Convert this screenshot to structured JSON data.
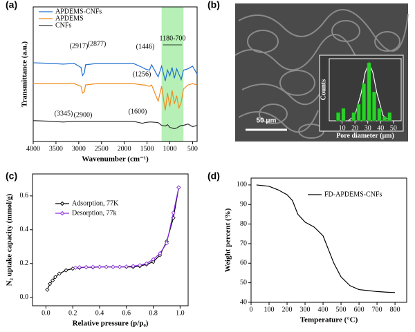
{
  "chart_data": [
    {
      "type": "line",
      "label": "(a)",
      "xlabel": "Wavenumber (cm⁻¹)",
      "ylabel": "Transmittance (a.u.)",
      "xlim": [
        4000,
        400
      ],
      "ylim": [
        0,
        10
      ],
      "xticks": [
        4000,
        3500,
        3000,
        2500,
        2000,
        1500,
        1000,
        500
      ],
      "x": [
        4000,
        3600,
        3345,
        3100,
        2950,
        2917,
        2877,
        2850,
        2600,
        2200,
        1800,
        1600,
        1550,
        1446,
        1400,
        1256,
        1180,
        1100,
        1050,
        1000,
        950,
        900,
        850,
        800,
        750,
        700,
        600,
        500,
        400
      ],
      "series": [
        {
          "name": "APDEMS-CNFs",
          "color": "#1f6fd1",
          "values": [
            5.85,
            5.8,
            5.75,
            5.8,
            5.5,
            4.9,
            5.1,
            5.7,
            5.8,
            5.8,
            5.8,
            5.5,
            5.4,
            5.3,
            5.7,
            4.8,
            5.6,
            4.5,
            5.3,
            4.9,
            5.5,
            4.7,
            5.4,
            5.0,
            4.6,
            5.3,
            5.4,
            5.6,
            5.0
          ]
        },
        {
          "name": "APDEMS",
          "color": "#f08a1c",
          "values": [
            4.3,
            4.3,
            4.3,
            4.3,
            4.1,
            3.6,
            3.7,
            4.2,
            4.3,
            4.3,
            4.3,
            4.2,
            4.2,
            4.1,
            4.2,
            3.0,
            4.1,
            2.3,
            3.6,
            2.6,
            3.8,
            2.8,
            3.4,
            2.5,
            2.9,
            3.9,
            4.2,
            4.3,
            4.2
          ]
        },
        {
          "name": "CNFs",
          "color": "#333333",
          "values": [
            1.55,
            1.5,
            1.45,
            1.5,
            1.5,
            1.5,
            1.5,
            1.5,
            1.5,
            1.5,
            1.5,
            1.35,
            1.4,
            1.45,
            1.45,
            1.4,
            1.2,
            1.15,
            1.25,
            1.05,
            1.0,
            0.95,
            1.0,
            1.1,
            1.2,
            1.2,
            1.3,
            1.1,
            1.2
          ]
        }
      ],
      "shaded_region": {
        "range": [
          1180,
          700
        ],
        "label": "1180-700",
        "color": "#b6f0b6"
      },
      "annotations": [
        "(2917)",
        "(2877)",
        "(1446)",
        "(1256)",
        "(3345)",
        "(2900)",
        "(1600)"
      ]
    },
    {
      "type": "histogram",
      "label": "(b)",
      "xlabel": "Pore diameter (μm)",
      "ylabel": "Counts",
      "scale_bar": "50 μm",
      "bins": [
        5,
        9,
        13,
        17,
        21,
        25,
        29,
        33,
        37,
        41,
        45,
        49
      ],
      "counts": [
        2,
        3,
        0,
        2,
        4,
        9,
        14,
        7,
        3,
        1,
        2
      ],
      "color": "#2ad12a",
      "xlim": [
        0,
        56
      ],
      "ylim": [
        0,
        15
      ],
      "xticks": [
        10,
        20,
        30,
        40,
        50
      ]
    },
    {
      "type": "line",
      "label": "(c)",
      "xlabel": "Relative pressure (p/p₀)",
      "ylabel": "N₂ uptake capacity (mmol/g)",
      "xlim": [
        -0.1,
        1.06
      ],
      "ylim": [
        -0.05,
        0.73
      ],
      "marker": "diamond",
      "xticks": [
        {
          "value": 0,
          "label": "0.0"
        },
        0.2,
        0.4,
        0.6,
        0.8,
        {
          "value": 1,
          "label": "1.0"
        }
      ],
      "yticks": [
        {
          "value": 0,
          "label": "0.0"
        },
        0.2,
        0.4,
        0.6
      ],
      "series": [
        {
          "name": "Adsorption, 77K",
          "color": "#000000",
          "x": [
            0.01,
            0.03,
            0.05,
            0.07,
            0.1,
            0.15,
            0.2,
            0.25,
            0.3,
            0.35,
            0.4,
            0.45,
            0.5,
            0.55,
            0.6,
            0.65,
            0.7,
            0.75,
            0.8,
            0.85,
            0.9,
            0.95,
            0.99
          ],
          "values": [
            0.045,
            0.08,
            0.1,
            0.12,
            0.14,
            0.16,
            0.17,
            0.175,
            0.178,
            0.178,
            0.18,
            0.18,
            0.18,
            0.18,
            0.18,
            0.18,
            0.185,
            0.195,
            0.21,
            0.25,
            0.33,
            0.47,
            0.65
          ]
        },
        {
          "name": "Desorption, 77k",
          "color": "#8a2be2",
          "x": [
            0.99,
            0.95,
            0.9,
            0.85,
            0.8,
            0.75,
            0.7,
            0.65,
            0.6,
            0.55,
            0.5,
            0.45,
            0.4,
            0.35,
            0.3,
            0.25,
            0.22
          ],
          "values": [
            0.65,
            0.5,
            0.32,
            0.26,
            0.225,
            0.2,
            0.19,
            0.185,
            0.182,
            0.18,
            0.18,
            0.18,
            0.18,
            0.18,
            0.178,
            0.178,
            0.175
          ]
        }
      ]
    },
    {
      "type": "line",
      "label": "(d)",
      "xlabel": "Temperature (°C)",
      "ylabel": "Weight percent (%)",
      "xlim": [
        0,
        865
      ],
      "ylim": [
        40,
        103.5
      ],
      "xticks": [
        0,
        100,
        200,
        300,
        400,
        500,
        600,
        700,
        800
      ],
      "yticks": [
        40,
        50,
        60,
        70,
        80,
        90,
        100
      ],
      "x": [
        30,
        100,
        150,
        200,
        230,
        260,
        300,
        350,
        400,
        430,
        460,
        500,
        550,
        600,
        650,
        700,
        750,
        800
      ],
      "series": [
        {
          "name": "FD-APDEMS-CNFs",
          "color": "#000000",
          "values": [
            100,
            99.3,
            97.5,
            95,
            92,
            85,
            81,
            78.5,
            74,
            67,
            60,
            53,
            48.5,
            46.5,
            46,
            45.5,
            45.2,
            45
          ]
        }
      ]
    }
  ]
}
